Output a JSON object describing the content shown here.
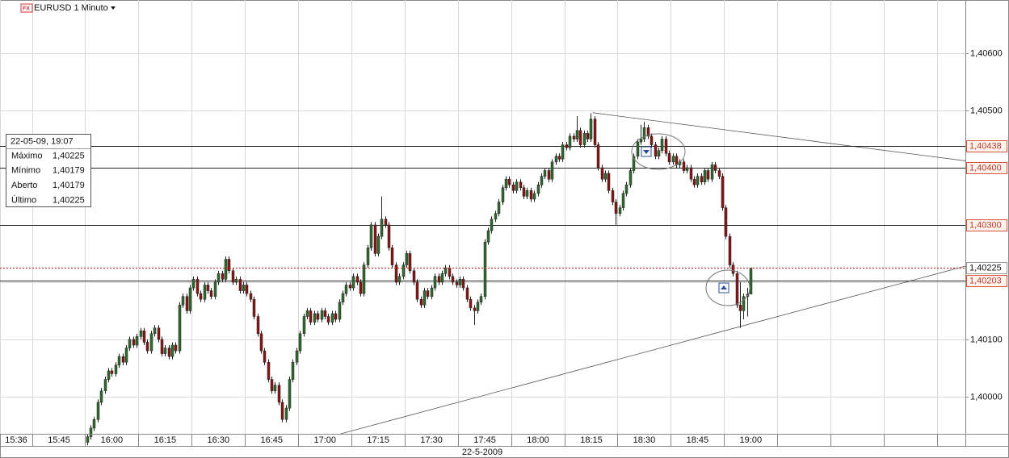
{
  "chart_data": {
    "type": "candlestick",
    "title": "EURUSD 1 Minuto",
    "x_label": "22-5-2009",
    "xlim": [
      "15:36",
      "20:08"
    ],
    "xticks": [
      "15:36",
      "15:45",
      "16:00",
      "16:15",
      "16:30",
      "16:45",
      "17:00",
      "17:15",
      "17:30",
      "17:45",
      "18:00",
      "18:15",
      "18:30",
      "18:45",
      "19:00",
      {
        "value": "19:15",
        "label": null
      },
      {
        "value": "19:30",
        "label": null
      },
      {
        "value": "19:45",
        "label": null
      },
      {
        "value": "20:00",
        "label": null
      }
    ],
    "ylim": [
      1.39935,
      1.40693
    ],
    "yticks": [
      {
        "value": 1.4,
        "label": "1,40000"
      },
      {
        "value": 1.401,
        "label": "1,40100"
      },
      {
        "value": 1.402,
        "label": null
      },
      {
        "value": 1.403,
        "label": null
      },
      {
        "value": 1.404,
        "label": null
      },
      {
        "value": 1.405,
        "label": "1,40500"
      },
      {
        "value": 1.406,
        "label": "1,40600"
      }
    ],
    "grid": true,
    "up_color": "#2f6b2f",
    "down_color": "#8a1414",
    "x": [
      "16:00",
      "16:01",
      "16:02",
      "16:03",
      "16:04",
      "16:05",
      "16:06",
      "16:07",
      "16:08",
      "16:09",
      "16:10",
      "16:11",
      "16:12",
      "16:13",
      "16:14",
      "16:15",
      "16:16",
      "16:17",
      "16:18",
      "16:19",
      "16:20",
      "16:21",
      "16:22",
      "16:23",
      "16:24",
      "16:25",
      "16:26",
      "16:27",
      "16:28",
      "16:29",
      "16:30",
      "16:31",
      "16:32",
      "16:33",
      "16:34",
      "16:35",
      "16:36",
      "16:37",
      "16:38",
      "16:39",
      "16:40",
      "16:41",
      "16:42",
      "16:43",
      "16:44",
      "16:45",
      "16:46",
      "16:47",
      "16:48",
      "16:49",
      "16:50",
      "16:51",
      "16:52",
      "16:53",
      "16:54",
      "16:55",
      "16:56",
      "16:57",
      "16:58",
      "16:59",
      "17:00",
      "17:01",
      "17:02",
      "17:03",
      "17:04",
      "17:05",
      "17:06",
      "17:07",
      "17:08",
      "17:09",
      "17:10",
      "17:11",
      "17:12",
      "17:13",
      "17:14",
      "17:15",
      "17:16",
      "17:17",
      "17:18",
      "17:19",
      "17:20",
      "17:21",
      "17:22",
      "17:23",
      "17:24",
      "17:25",
      "17:26",
      "17:27",
      "17:28",
      "17:29",
      "17:30",
      "17:31",
      "17:32",
      "17:33",
      "17:34",
      "17:35",
      "17:36",
      "17:37",
      "17:38",
      "17:39",
      "17:40",
      "17:41",
      "17:42",
      "17:43",
      "17:44",
      "17:45",
      "17:46",
      "17:47",
      "17:48",
      "17:49",
      "17:50",
      "17:51",
      "17:52",
      "17:53",
      "17:54",
      "17:55",
      "17:56",
      "17:57",
      "17:58",
      "17:59",
      "18:00",
      "18:01",
      "18:02",
      "18:03",
      "18:04",
      "18:05",
      "18:06",
      "18:07",
      "18:08",
      "18:09",
      "18:10",
      "18:11",
      "18:12",
      "18:13",
      "18:14",
      "18:15",
      "18:16",
      "18:17",
      "18:18",
      "18:19",
      "18:20",
      "18:21",
      "18:22",
      "18:23",
      "18:24",
      "18:25",
      "18:26",
      "18:27",
      "18:28",
      "18:29",
      "18:30",
      "18:31",
      "18:32",
      "18:33",
      "18:34",
      "18:35",
      "18:36",
      "18:37",
      "18:38",
      "18:39",
      "18:40",
      "18:41",
      "18:42",
      "18:43",
      "18:44",
      "18:45",
      "18:46",
      "18:47",
      "18:48",
      "18:49",
      "18:50",
      "18:51",
      "18:52",
      "18:53",
      "18:54",
      "18:55",
      "18:56",
      "18:57",
      "18:58",
      "18:59",
      "19:00",
      "19:01",
      "19:02",
      "19:03",
      "19:04",
      "19:05",
      "19:06",
      "19:07"
    ],
    "open": [
      1.3992,
      1.3993,
      1.39945,
      1.3996,
      1.3999,
      1.4001,
      1.4003,
      1.40045,
      1.4004,
      1.40055,
      1.4007,
      1.4006,
      1.40085,
      1.401,
      1.4009,
      1.40105,
      1.40115,
      1.40095,
      1.4008,
      1.4011,
      1.4012,
      1.401,
      1.40075,
      1.40085,
      1.4007,
      1.4009,
      1.4008,
      1.4016,
      1.40175,
      1.4015,
      1.4019,
      1.40205,
      1.4018,
      1.4017,
      1.40195,
      1.40185,
      1.40175,
      1.402,
      1.40215,
      1.40205,
      1.4024,
      1.4022,
      1.402,
      1.40205,
      1.40185,
      1.40195,
      1.4018,
      1.4017,
      1.4014,
      1.4011,
      1.4008,
      1.4006,
      1.4003,
      1.4001,
      1.4002,
      1.3999,
      1.3996,
      1.3998,
      1.4003,
      1.4006,
      1.4008,
      1.4011,
      1.4014,
      1.4015,
      1.4013,
      1.40145,
      1.40135,
      1.4015,
      1.4014,
      1.4013,
      1.40145,
      1.40135,
      1.40165,
      1.4018,
      1.40195,
      1.4019,
      1.4021,
      1.402,
      1.4018,
      1.4023,
      1.4026,
      1.403,
      1.4025,
      1.4028,
      1.4031,
      1.403,
      1.4026,
      1.4023,
      1.402,
      1.4021,
      1.4023,
      1.4025,
      1.4022,
      1.402,
      1.4017,
      1.4016,
      1.40185,
      1.40175,
      1.4019,
      1.4021,
      1.402,
      1.40215,
      1.40225,
      1.4021,
      1.402,
      1.40195,
      1.40205,
      1.4019,
      1.4017,
      1.40155,
      1.4015,
      1.40165,
      1.40175,
      1.4027,
      1.4029,
      1.4031,
      1.4032,
      1.4034,
      1.40365,
      1.4038,
      1.4037,
      1.4036,
      1.40375,
      1.40365,
      1.4035,
      1.4036,
      1.40345,
      1.40355,
      1.4037,
      1.40385,
      1.40395,
      1.4038,
      1.4041,
      1.4042,
      1.40415,
      1.4044,
      1.40435,
      1.40455,
      1.4045,
      1.40465,
      1.4044,
      1.4046,
      1.4045,
      1.40485,
      1.4044,
      1.404,
      1.4038,
      1.4039,
      1.4036,
      1.4034,
      1.4032,
      1.4033,
      1.40355,
      1.4037,
      1.40395,
      1.4042,
      1.40445,
      1.4045,
      1.4047,
      1.40455,
      1.4044,
      1.4042,
      1.4043,
      1.4045,
      1.40425,
      1.4041,
      1.4042,
      1.40405,
      1.4041,
      1.40395,
      1.404,
      1.4038,
      1.4037,
      1.40385,
      1.40375,
      1.40395,
      1.4038,
      1.40405,
      1.40395,
      1.40385,
      1.4033,
      1.4028,
      1.4023,
      1.40215,
      1.4016,
      1.4015,
      1.40175,
      1.40179
    ],
    "high": [
      1.39935,
      1.3995,
      1.39965,
      1.39995,
      1.40015,
      1.40035,
      1.4005,
      1.4005,
      1.4006,
      1.40075,
      1.40075,
      1.4009,
      1.40105,
      1.40105,
      1.4011,
      1.4012,
      1.4012,
      1.401,
      1.40115,
      1.40125,
      1.40125,
      1.40105,
      1.4009,
      1.4009,
      1.40095,
      1.40095,
      1.40165,
      1.4018,
      1.4018,
      1.40195,
      1.4021,
      1.4021,
      1.40185,
      1.402,
      1.402,
      1.4019,
      1.40205,
      1.4022,
      1.4022,
      1.40245,
      1.40245,
      1.40225,
      1.4021,
      1.4021,
      1.402,
      1.402,
      1.40185,
      1.40175,
      1.40145,
      1.40115,
      1.40085,
      1.40065,
      1.40035,
      1.40025,
      1.40025,
      1.39995,
      1.39985,
      1.40035,
      1.40065,
      1.40085,
      1.40115,
      1.40145,
      1.40155,
      1.40155,
      1.4015,
      1.4015,
      1.40155,
      1.40155,
      1.40145,
      1.4015,
      1.4015,
      1.4017,
      1.40185,
      1.402,
      1.402,
      1.40215,
      1.40215,
      1.40205,
      1.40235,
      1.40265,
      1.40305,
      1.40305,
      1.40285,
      1.4035,
      1.40315,
      1.40305,
      1.40265,
      1.40235,
      1.40215,
      1.40235,
      1.40255,
      1.40255,
      1.40225,
      1.40205,
      1.40175,
      1.4019,
      1.4019,
      1.40195,
      1.40215,
      1.40215,
      1.4022,
      1.4023,
      1.4023,
      1.40215,
      1.40205,
      1.4021,
      1.4021,
      1.40195,
      1.40175,
      1.4016,
      1.4017,
      1.4018,
      1.40275,
      1.40295,
      1.40315,
      1.40325,
      1.40345,
      1.4037,
      1.40385,
      1.40385,
      1.40375,
      1.4038,
      1.4038,
      1.4037,
      1.40365,
      1.40365,
      1.4036,
      1.40375,
      1.4039,
      1.404,
      1.404,
      1.40415,
      1.40425,
      1.40425,
      1.40445,
      1.40445,
      1.4046,
      1.4046,
      1.4049,
      1.4047,
      1.40465,
      1.40465,
      1.40495,
      1.4049,
      1.40445,
      1.40405,
      1.40395,
      1.40395,
      1.40365,
      1.40345,
      1.40335,
      1.4036,
      1.40375,
      1.404,
      1.40425,
      1.4045,
      1.40475,
      1.4048,
      1.40475,
      1.4046,
      1.40445,
      1.40435,
      1.40455,
      1.40455,
      1.4043,
      1.40425,
      1.40425,
      1.40415,
      1.40415,
      1.40405,
      1.40405,
      1.40385,
      1.4039,
      1.4039,
      1.404,
      1.404,
      1.4041,
      1.4041,
      1.404,
      1.4039,
      1.40335,
      1.40285,
      1.40235,
      1.4022,
      1.402,
      1.4018,
      1.4019,
      1.40225
    ],
    "low": [
      1.39915,
      1.39925,
      1.3994,
      1.39955,
      1.39985,
      1.40005,
      1.40025,
      1.40035,
      1.40035,
      1.4005,
      1.40055,
      1.40055,
      1.4008,
      1.40085,
      1.40085,
      1.401,
      1.4009,
      1.40075,
      1.40075,
      1.40105,
      1.40095,
      1.4007,
      1.4007,
      1.40065,
      1.40065,
      1.40075,
      1.40075,
      1.40155,
      1.40145,
      1.40145,
      1.40185,
      1.40175,
      1.40165,
      1.40165,
      1.4018,
      1.4017,
      1.4017,
      1.40195,
      1.402,
      1.402,
      1.40215,
      1.40195,
      1.40195,
      1.4018,
      1.4018,
      1.40175,
      1.40165,
      1.40135,
      1.40105,
      1.40075,
      1.40055,
      1.40025,
      1.40005,
      1.40005,
      1.39985,
      1.39955,
      1.39955,
      1.39975,
      1.40025,
      1.40055,
      1.40075,
      1.40105,
      1.40135,
      1.40125,
      1.40125,
      1.4013,
      1.4013,
      1.40135,
      1.40125,
      1.40125,
      1.4013,
      1.4013,
      1.4016,
      1.40175,
      1.40185,
      1.40185,
      1.40195,
      1.40175,
      1.40175,
      1.40225,
      1.40255,
      1.40245,
      1.40245,
      1.40275,
      1.40295,
      1.40255,
      1.40225,
      1.40195,
      1.40195,
      1.40205,
      1.40225,
      1.40215,
      1.40195,
      1.40165,
      1.40155,
      1.40155,
      1.4017,
      1.4017,
      1.40185,
      1.40195,
      1.40195,
      1.4021,
      1.40205,
      1.40195,
      1.4019,
      1.4019,
      1.40185,
      1.40165,
      1.4015,
      1.40125,
      1.40145,
      1.4016,
      1.4017,
      1.40265,
      1.40285,
      1.40305,
      1.40315,
      1.40335,
      1.4036,
      1.40365,
      1.40355,
      1.40355,
      1.4036,
      1.40345,
      1.40345,
      1.4034,
      1.4034,
      1.4035,
      1.40365,
      1.4038,
      1.40375,
      1.40375,
      1.40405,
      1.4041,
      1.4041,
      1.4043,
      1.4043,
      1.40445,
      1.40445,
      1.40435,
      1.40435,
      1.40445,
      1.40445,
      1.40435,
      1.40395,
      1.40375,
      1.40375,
      1.40355,
      1.40335,
      1.403,
      1.40315,
      1.40325,
      1.4035,
      1.40365,
      1.4039,
      1.40415,
      1.4044,
      1.40445,
      1.4045,
      1.40435,
      1.40415,
      1.40415,
      1.40425,
      1.4042,
      1.40405,
      1.40405,
      1.404,
      1.404,
      1.4039,
      1.4039,
      1.40375,
      1.40365,
      1.40365,
      1.4037,
      1.4037,
      1.40375,
      1.40375,
      1.4039,
      1.4038,
      1.40325,
      1.40275,
      1.40225,
      1.4021,
      1.40155,
      1.4012,
      1.40135,
      1.4014,
      1.40179
    ],
    "close": [
      1.3993,
      1.39945,
      1.3996,
      1.3999,
      1.4001,
      1.4003,
      1.40045,
      1.4004,
      1.40055,
      1.4007,
      1.4006,
      1.40085,
      1.401,
      1.4009,
      1.40105,
      1.40115,
      1.40095,
      1.4008,
      1.4011,
      1.4012,
      1.401,
      1.40075,
      1.40085,
      1.4007,
      1.4009,
      1.4008,
      1.4016,
      1.40175,
      1.4015,
      1.4019,
      1.40205,
      1.4018,
      1.4017,
      1.40195,
      1.40185,
      1.40175,
      1.402,
      1.40215,
      1.40205,
      1.4024,
      1.4022,
      1.402,
      1.40205,
      1.40185,
      1.40195,
      1.4018,
      1.4017,
      1.4014,
      1.4011,
      1.4008,
      1.4006,
      1.4003,
      1.4001,
      1.4002,
      1.3999,
      1.3996,
      1.3998,
      1.4003,
      1.4006,
      1.4008,
      1.4011,
      1.4014,
      1.4015,
      1.4013,
      1.40145,
      1.40135,
      1.4015,
      1.4014,
      1.4013,
      1.40145,
      1.40135,
      1.40165,
      1.4018,
      1.40195,
      1.4019,
      1.4021,
      1.402,
      1.4018,
      1.4023,
      1.4026,
      1.403,
      1.4025,
      1.4028,
      1.4031,
      1.403,
      1.4026,
      1.4023,
      1.402,
      1.4021,
      1.4023,
      1.4025,
      1.4022,
      1.402,
      1.4017,
      1.4016,
      1.40185,
      1.40175,
      1.4019,
      1.4021,
      1.402,
      1.40215,
      1.40225,
      1.4021,
      1.402,
      1.40195,
      1.40205,
      1.4019,
      1.4017,
      1.40155,
      1.4015,
      1.40165,
      1.40175,
      1.4027,
      1.4029,
      1.4031,
      1.4032,
      1.4034,
      1.40365,
      1.4038,
      1.4037,
      1.4036,
      1.40375,
      1.40365,
      1.4035,
      1.4036,
      1.40345,
      1.40355,
      1.4037,
      1.40385,
      1.40395,
      1.4038,
      1.4041,
      1.4042,
      1.40415,
      1.4044,
      1.40435,
      1.40455,
      1.4045,
      1.40465,
      1.4044,
      1.4046,
      1.4045,
      1.40485,
      1.4044,
      1.404,
      1.4038,
      1.4039,
      1.4036,
      1.4034,
      1.4032,
      1.4033,
      1.40355,
      1.4037,
      1.40395,
      1.4042,
      1.40445,
      1.4045,
      1.4047,
      1.40455,
      1.4044,
      1.4042,
      1.4043,
      1.4045,
      1.40425,
      1.4041,
      1.4042,
      1.40405,
      1.4041,
      1.40395,
      1.404,
      1.4038,
      1.4037,
      1.40385,
      1.40375,
      1.40395,
      1.4038,
      1.40405,
      1.40395,
      1.40385,
      1.4033,
      1.4028,
      1.4023,
      1.40215,
      1.4016,
      1.4015,
      1.40175,
      1.40179,
      1.40225
    ],
    "levels": [
      1.40438,
      1.404,
      1.403,
      1.40203
    ],
    "level_labels": [
      "1,40438",
      "1,40400",
      "1,40300",
      "1,40203"
    ],
    "last": 1.40225,
    "last_label": "1,40225",
    "trendlines": [
      {
        "x": [
          "18:23",
          "20:08"
        ],
        "y": [
          1.40496,
          1.40412
        ]
      },
      {
        "x": [
          "17:12",
          "20:08"
        ],
        "y": [
          1.39935,
          1.40228
        ]
      }
    ],
    "info_box": {
      "title": "22-05-09, 19:07",
      "rows": [
        [
          "Máximo",
          "1,40225"
        ],
        [
          "Mínimo",
          "1,40179"
        ],
        [
          "Aberto",
          "1,40179"
        ],
        [
          "Último",
          "1,40225"
        ]
      ]
    }
  }
}
